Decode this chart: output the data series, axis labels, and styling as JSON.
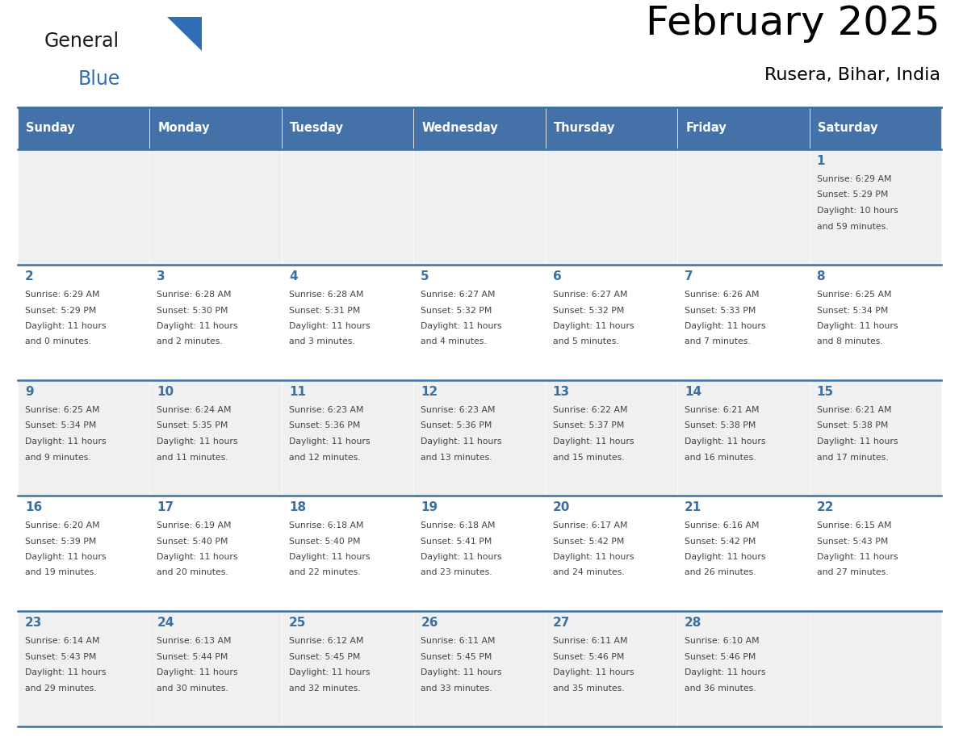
{
  "title": "February 2025",
  "subtitle": "Rusera, Bihar, India",
  "header_bg_color": "#4472a8",
  "header_text_color": "#ffffff",
  "day_names": [
    "Sunday",
    "Monday",
    "Tuesday",
    "Wednesday",
    "Thursday",
    "Friday",
    "Saturday"
  ],
  "row_bg_even": "#f0f0f0",
  "row_bg_odd": "#ffffff",
  "cell_border_color": "#3d6fa0",
  "day_number_color": "#3d6fa0",
  "info_text_color": "#444444",
  "logo_general_color": "#1a1a1a",
  "logo_blue_color": "#2f6db5",
  "calendar": [
    [
      {
        "day": 0,
        "sunrise": "",
        "sunset": "",
        "daylight": ""
      },
      {
        "day": 0,
        "sunrise": "",
        "sunset": "",
        "daylight": ""
      },
      {
        "day": 0,
        "sunrise": "",
        "sunset": "",
        "daylight": ""
      },
      {
        "day": 0,
        "sunrise": "",
        "sunset": "",
        "daylight": ""
      },
      {
        "day": 0,
        "sunrise": "",
        "sunset": "",
        "daylight": ""
      },
      {
        "day": 0,
        "sunrise": "",
        "sunset": "",
        "daylight": ""
      },
      {
        "day": 1,
        "sunrise": "Sunrise: 6:29 AM",
        "sunset": "Sunset: 5:29 PM",
        "daylight": "Daylight: 10 hours\nand 59 minutes."
      }
    ],
    [
      {
        "day": 2,
        "sunrise": "Sunrise: 6:29 AM",
        "sunset": "Sunset: 5:29 PM",
        "daylight": "Daylight: 11 hours\nand 0 minutes."
      },
      {
        "day": 3,
        "sunrise": "Sunrise: 6:28 AM",
        "sunset": "Sunset: 5:30 PM",
        "daylight": "Daylight: 11 hours\nand 2 minutes."
      },
      {
        "day": 4,
        "sunrise": "Sunrise: 6:28 AM",
        "sunset": "Sunset: 5:31 PM",
        "daylight": "Daylight: 11 hours\nand 3 minutes."
      },
      {
        "day": 5,
        "sunrise": "Sunrise: 6:27 AM",
        "sunset": "Sunset: 5:32 PM",
        "daylight": "Daylight: 11 hours\nand 4 minutes."
      },
      {
        "day": 6,
        "sunrise": "Sunrise: 6:27 AM",
        "sunset": "Sunset: 5:32 PM",
        "daylight": "Daylight: 11 hours\nand 5 minutes."
      },
      {
        "day": 7,
        "sunrise": "Sunrise: 6:26 AM",
        "sunset": "Sunset: 5:33 PM",
        "daylight": "Daylight: 11 hours\nand 7 minutes."
      },
      {
        "day": 8,
        "sunrise": "Sunrise: 6:25 AM",
        "sunset": "Sunset: 5:34 PM",
        "daylight": "Daylight: 11 hours\nand 8 minutes."
      }
    ],
    [
      {
        "day": 9,
        "sunrise": "Sunrise: 6:25 AM",
        "sunset": "Sunset: 5:34 PM",
        "daylight": "Daylight: 11 hours\nand 9 minutes."
      },
      {
        "day": 10,
        "sunrise": "Sunrise: 6:24 AM",
        "sunset": "Sunset: 5:35 PM",
        "daylight": "Daylight: 11 hours\nand 11 minutes."
      },
      {
        "day": 11,
        "sunrise": "Sunrise: 6:23 AM",
        "sunset": "Sunset: 5:36 PM",
        "daylight": "Daylight: 11 hours\nand 12 minutes."
      },
      {
        "day": 12,
        "sunrise": "Sunrise: 6:23 AM",
        "sunset": "Sunset: 5:36 PM",
        "daylight": "Daylight: 11 hours\nand 13 minutes."
      },
      {
        "day": 13,
        "sunrise": "Sunrise: 6:22 AM",
        "sunset": "Sunset: 5:37 PM",
        "daylight": "Daylight: 11 hours\nand 15 minutes."
      },
      {
        "day": 14,
        "sunrise": "Sunrise: 6:21 AM",
        "sunset": "Sunset: 5:38 PM",
        "daylight": "Daylight: 11 hours\nand 16 minutes."
      },
      {
        "day": 15,
        "sunrise": "Sunrise: 6:21 AM",
        "sunset": "Sunset: 5:38 PM",
        "daylight": "Daylight: 11 hours\nand 17 minutes."
      }
    ],
    [
      {
        "day": 16,
        "sunrise": "Sunrise: 6:20 AM",
        "sunset": "Sunset: 5:39 PM",
        "daylight": "Daylight: 11 hours\nand 19 minutes."
      },
      {
        "day": 17,
        "sunrise": "Sunrise: 6:19 AM",
        "sunset": "Sunset: 5:40 PM",
        "daylight": "Daylight: 11 hours\nand 20 minutes."
      },
      {
        "day": 18,
        "sunrise": "Sunrise: 6:18 AM",
        "sunset": "Sunset: 5:40 PM",
        "daylight": "Daylight: 11 hours\nand 22 minutes."
      },
      {
        "day": 19,
        "sunrise": "Sunrise: 6:18 AM",
        "sunset": "Sunset: 5:41 PM",
        "daylight": "Daylight: 11 hours\nand 23 minutes."
      },
      {
        "day": 20,
        "sunrise": "Sunrise: 6:17 AM",
        "sunset": "Sunset: 5:42 PM",
        "daylight": "Daylight: 11 hours\nand 24 minutes."
      },
      {
        "day": 21,
        "sunrise": "Sunrise: 6:16 AM",
        "sunset": "Sunset: 5:42 PM",
        "daylight": "Daylight: 11 hours\nand 26 minutes."
      },
      {
        "day": 22,
        "sunrise": "Sunrise: 6:15 AM",
        "sunset": "Sunset: 5:43 PM",
        "daylight": "Daylight: 11 hours\nand 27 minutes."
      }
    ],
    [
      {
        "day": 23,
        "sunrise": "Sunrise: 6:14 AM",
        "sunset": "Sunset: 5:43 PM",
        "daylight": "Daylight: 11 hours\nand 29 minutes."
      },
      {
        "day": 24,
        "sunrise": "Sunrise: 6:13 AM",
        "sunset": "Sunset: 5:44 PM",
        "daylight": "Daylight: 11 hours\nand 30 minutes."
      },
      {
        "day": 25,
        "sunrise": "Sunrise: 6:12 AM",
        "sunset": "Sunset: 5:45 PM",
        "daylight": "Daylight: 11 hours\nand 32 minutes."
      },
      {
        "day": 26,
        "sunrise": "Sunrise: 6:11 AM",
        "sunset": "Sunset: 5:45 PM",
        "daylight": "Daylight: 11 hours\nand 33 minutes."
      },
      {
        "day": 27,
        "sunrise": "Sunrise: 6:11 AM",
        "sunset": "Sunset: 5:46 PM",
        "daylight": "Daylight: 11 hours\nand 35 minutes."
      },
      {
        "day": 28,
        "sunrise": "Sunrise: 6:10 AM",
        "sunset": "Sunset: 5:46 PM",
        "daylight": "Daylight: 11 hours\nand 36 minutes."
      },
      {
        "day": 0,
        "sunrise": "",
        "sunset": "",
        "daylight": ""
      }
    ]
  ]
}
